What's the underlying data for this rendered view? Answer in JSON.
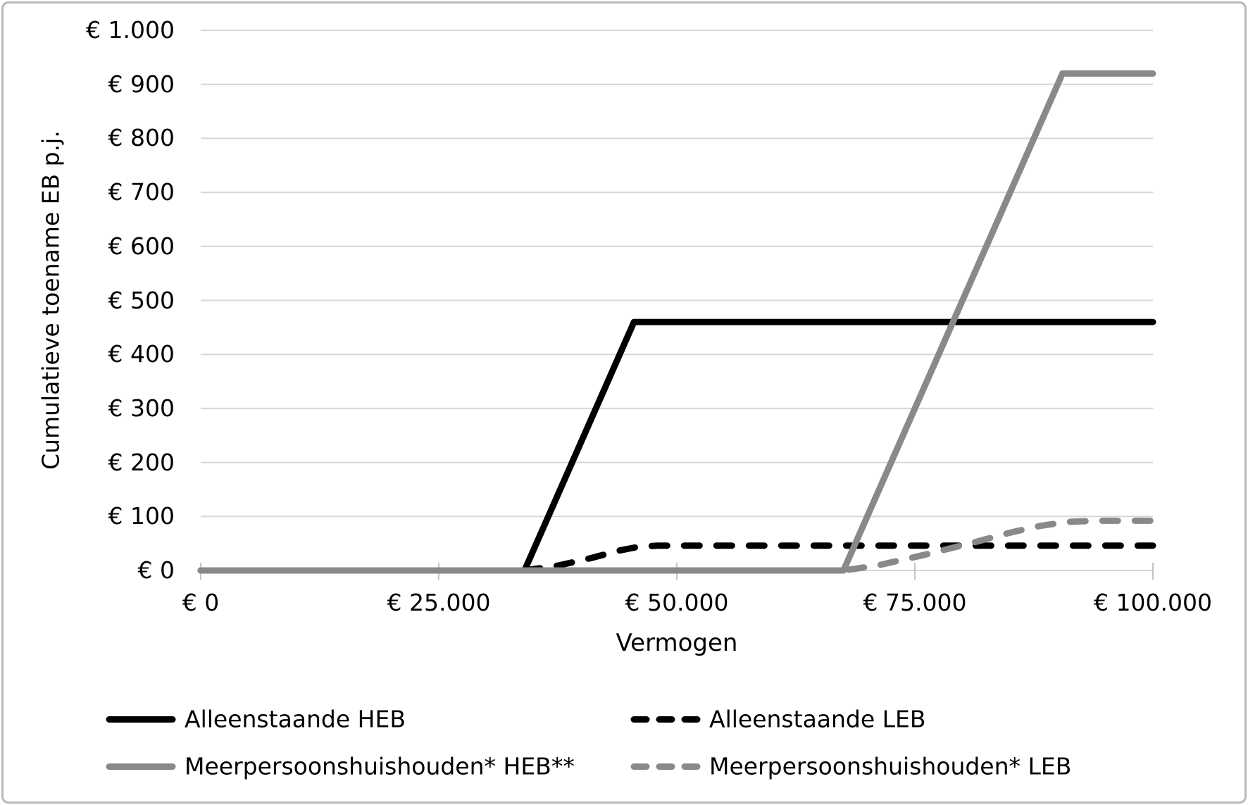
{
  "figure": {
    "background_color": "#ffffff",
    "border_color": "#b9b9b9"
  },
  "chart_data": {
    "type": "line",
    "title": "",
    "xlabel": "Vermogen",
    "ylabel": "Cumulatieve toename EB p.j.",
    "xlim": [
      0,
      100000
    ],
    "ylim": [
      0,
      1000
    ],
    "grid": "horizontal",
    "gridline_color": "#d6d6d6",
    "tick_color": "#c3c3c3",
    "legend_position": "bottom",
    "x_ticks": [
      {
        "value": 0,
        "label": "€ 0"
      },
      {
        "value": 25000,
        "label": "€ 25.000"
      },
      {
        "value": 50000,
        "label": "€ 50.000"
      },
      {
        "value": 75000,
        "label": "€ 75.000"
      },
      {
        "value": 100000,
        "label": "€ 100.000"
      }
    ],
    "y_ticks": [
      {
        "value": 0,
        "label": "€ 0"
      },
      {
        "value": 100,
        "label": "€ 100"
      },
      {
        "value": 200,
        "label": "€ 200"
      },
      {
        "value": 300,
        "label": "€ 300"
      },
      {
        "value": 400,
        "label": "€ 400"
      },
      {
        "value": 500,
        "label": "€ 500"
      },
      {
        "value": 600,
        "label": "€ 600"
      },
      {
        "value": 700,
        "label": "€ 700"
      },
      {
        "value": 800,
        "label": "€ 800"
      },
      {
        "value": 900,
        "label": "€ 900"
      },
      {
        "value": 1000,
        "label": "€ 1.000"
      }
    ],
    "series": [
      {
        "name": "Alleenstaande HEB",
        "color": "#000000",
        "style": "solid",
        "points": [
          [
            0,
            0
          ],
          [
            34000,
            0
          ],
          [
            45500,
            460
          ],
          [
            100000,
            460
          ]
        ]
      },
      {
        "name": "Alleenstaande LEB",
        "color": "#000000",
        "style": "dashed",
        "points": [
          [
            0,
            0
          ],
          [
            34000,
            0
          ],
          [
            37500,
            9
          ],
          [
            41000,
            23
          ],
          [
            44000,
            37
          ],
          [
            46000,
            44
          ],
          [
            48000,
            46
          ],
          [
            100000,
            46
          ]
        ]
      },
      {
        "name": "Meerpersoonshuishouden* HEB**",
        "color": "#898989",
        "style": "solid",
        "points": [
          [
            0,
            0
          ],
          [
            67500,
            0
          ],
          [
            90500,
            920
          ],
          [
            100000,
            920
          ]
        ]
      },
      {
        "name": "Meerpersoonshuishouden* LEB",
        "color": "#898989",
        "style": "dashed",
        "points": [
          [
            0,
            0
          ],
          [
            67500,
            0
          ],
          [
            71000,
            9
          ],
          [
            76000,
            29
          ],
          [
            81000,
            51
          ],
          [
            85000,
            70
          ],
          [
            88000,
            82
          ],
          [
            91000,
            90
          ],
          [
            94000,
            92
          ],
          [
            100000,
            92
          ]
        ]
      }
    ]
  }
}
